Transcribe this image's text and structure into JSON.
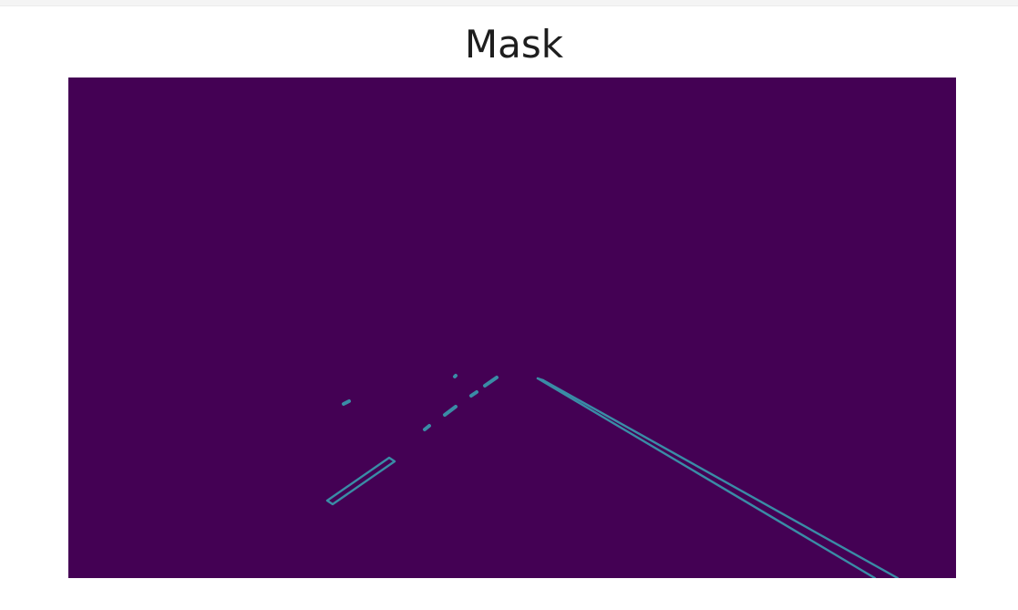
{
  "title": "Mask",
  "colors": {
    "background": "#440154",
    "edge": "#3a8ca6",
    "page": "#ffffff"
  }
}
